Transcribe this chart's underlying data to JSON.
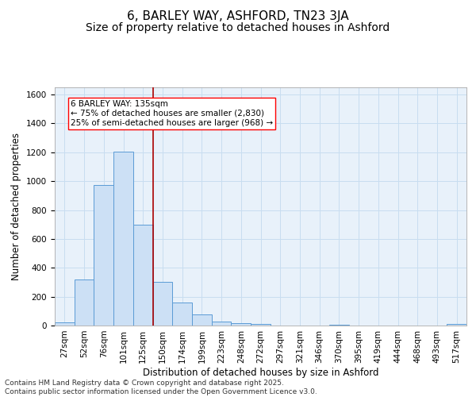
{
  "title": "6, BARLEY WAY, ASHFORD, TN23 3JA",
  "subtitle": "Size of property relative to detached houses in Ashford",
  "xlabel": "Distribution of detached houses by size in Ashford",
  "ylabel": "Number of detached properties",
  "bin_labels": [
    "27sqm",
    "52sqm",
    "76sqm",
    "101sqm",
    "125sqm",
    "150sqm",
    "174sqm",
    "199sqm",
    "223sqm",
    "248sqm",
    "272sqm",
    "297sqm",
    "321sqm",
    "346sqm",
    "370sqm",
    "395sqm",
    "419sqm",
    "444sqm",
    "468sqm",
    "493sqm",
    "517sqm"
  ],
  "bar_values": [
    20,
    320,
    975,
    1205,
    700,
    300,
    160,
    75,
    25,
    15,
    10,
    0,
    0,
    0,
    5,
    0,
    0,
    0,
    0,
    0,
    10
  ],
  "bar_color": "#cce0f5",
  "bar_edge_color": "#5b9bd5",
  "property_label": "6 BARLEY WAY: 135sqm",
  "annotation_line1": "← 75% of detached houses are smaller (2,830)",
  "annotation_line2": "25% of semi-detached houses are larger (968) →",
  "vline_color": "#aa0000",
  "vline_x_index": 4.5,
  "ylim": [
    0,
    1650
  ],
  "yticks": [
    0,
    200,
    400,
    600,
    800,
    1000,
    1200,
    1400,
    1600
  ],
  "grid_color": "#c8ddf0",
  "background_color": "#e8f1fa",
  "footer_line1": "Contains HM Land Registry data © Crown copyright and database right 2025.",
  "footer_line2": "Contains public sector information licensed under the Open Government Licence v3.0.",
  "title_fontsize": 11,
  "subtitle_fontsize": 10,
  "axis_label_fontsize": 8.5,
  "tick_fontsize": 7.5,
  "annotation_fontsize": 7.5,
  "footer_fontsize": 6.5
}
